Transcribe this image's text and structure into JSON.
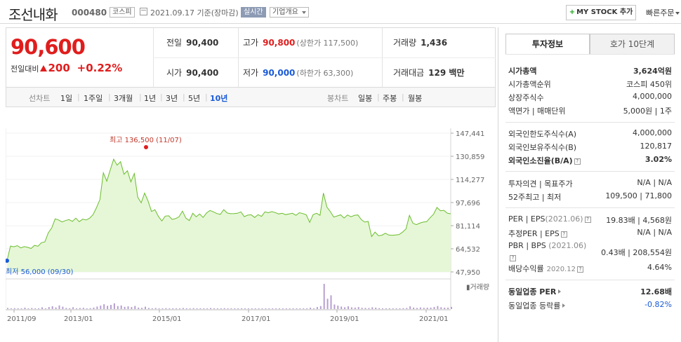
{
  "header": {
    "name": "조선내화",
    "code": "000480",
    "market": "코스피",
    "date": "2021.09.17 기준(장마감)",
    "live": "실시간",
    "overview": "기업개요",
    "mystock_label": "MY STOCK 추가",
    "quick_order": "빠른주문"
  },
  "price": {
    "current": "90,600",
    "change_label": "전일대비",
    "change": "200",
    "change_pct": "+0.22%",
    "prev_label": "전일",
    "prev": "90,400",
    "high_label": "고가",
    "high": "90,800",
    "upper_limit": "(상한가 117,500)",
    "volume_label": "거래량",
    "volume": "1,436",
    "open_label": "시가",
    "open": "90,400",
    "low_label": "저가",
    "low": "90,000",
    "lower_limit": "(하한가 63,300)",
    "amount_label": "거래대금",
    "amount": "129 백만"
  },
  "periods": {
    "line_chart_label": "선차트",
    "items": [
      "1일",
      "1주일",
      "3개월",
      "1년",
      "3년",
      "5년",
      "10년"
    ],
    "active": "10년",
    "candle_label": "봉차트",
    "candles": [
      "일봉",
      "주봉",
      "월봉"
    ]
  },
  "colors": {
    "up": "#e01d1d",
    "down": "#1a5ad7",
    "line": "#6bbd2e",
    "fill": "#e6f7d7",
    "volume": "#b79fd0"
  },
  "chart_data": {
    "type": "area",
    "y_ticks": [
      "147,441",
      "130,859",
      "114,277",
      "97,696",
      "81,114",
      "64,532",
      "47,950"
    ],
    "ylim": [
      47950,
      147441
    ],
    "x_ticks": [
      "2011/09",
      "2013/01",
      "2015/01",
      "2017/01",
      "2019/01",
      "2021/01"
    ],
    "high_label": "최고 136,500 (11/07)",
    "low_label": "최저 56,000 (09/30)",
    "volume_legend": "거래량",
    "series": [
      {
        "values": [
          56000,
          66500,
          66000,
          66800,
          65200,
          66100,
          65600,
          64800,
          67000,
          66400,
          68900,
          69500,
          76000,
          79500,
          86000,
          85200,
          83800,
          84800,
          85500,
          84200,
          86500,
          84000,
          85800,
          85200,
          86500,
          89000,
          94000,
          99800,
          119000,
          113000,
          121000,
          128800,
          124500,
          127000,
          118000,
          120500,
          112500,
          118500,
          101500,
          97500,
          104500,
          98800,
          91300,
          92500,
          87800,
          84500,
          88000,
          88200,
          85600,
          86200,
          87500,
          91500,
          86500,
          84800,
          90000,
          87500,
          89500,
          87000,
          90200,
          92000,
          91000,
          89800,
          89200,
          92600,
          90200,
          89700,
          89800,
          90000,
          91000,
          87600,
          88700,
          88900,
          87000,
          89000,
          87800,
          91000,
          90400,
          91200,
          90500,
          89500,
          90000,
          89000,
          89500,
          90000,
          88500,
          90400,
          89800,
          88900,
          83500,
          89000,
          90000,
          88500,
          104500,
          94500,
          91200,
          87300,
          88100,
          88900,
          86600,
          88800,
          87500,
          88500,
          88800,
          85500,
          83700,
          84200,
          73300,
          76500,
          73900,
          74300,
          75700,
          74400,
          74200,
          74500,
          74800,
          76500,
          78800,
          88500,
          82900,
          81800,
          82900,
          83700,
          84000,
          86800,
          89300,
          94200,
          91800,
          92100,
          90100,
          89600
        ]
      }
    ],
    "volume": [
      1,
      0.5,
      0.8,
      0.3,
      0.6,
      1.2,
      0.4,
      0.9,
      0.5,
      0.7,
      1.5,
      0.6,
      1.8,
      2.5,
      1.4,
      3.2,
      2.1,
      1,
      0.8,
      1.6,
      0.7,
      0.9,
      1.1,
      0.5,
      0.8,
      1.3,
      2.2,
      3,
      4.2,
      2.8,
      3.6,
      5,
      2.6,
      3.1,
      1.9,
      2.4,
      1.8,
      2.7,
      1.3,
      1.1,
      2.1,
      1,
      0.7,
      0.9,
      0.6,
      0.5,
      0.8,
      0.6,
      0.7,
      0.5,
      0.6,
      0.9,
      0.5,
      0.4,
      0.8,
      0.5,
      0.7,
      0.5,
      0.6,
      0.9,
      0.6,
      0.5,
      0.4,
      0.8,
      0.5,
      0.5,
      0.4,
      0.6,
      0.7,
      0.5,
      0.5,
      0.6,
      0.4,
      0.5,
      0.4,
      0.6,
      0.5,
      0.6,
      0.5,
      0.4,
      0.5,
      0.4,
      0.5,
      0.6,
      0.4,
      0.5,
      0.5,
      0.4,
      1.2,
      0.6,
      1.8,
      2.6,
      22,
      9,
      12,
      4,
      3,
      2.2,
      1.6,
      2.4,
      1.5,
      1.3,
      1.8,
      1.1,
      1,
      0.9,
      1.6,
      1.2,
      0.8,
      0.7,
      0.6,
      0.7,
      0.6,
      0.5,
      0.7,
      0.8,
      0.9,
      2.4,
      1.3,
      1,
      1.4,
      1.1,
      1.2,
      1.3,
      1.8,
      2.6,
      1.6,
      1.2,
      1.3,
      1.9
    ]
  },
  "right": {
    "tab_active": "투자정보",
    "tab_other": "호가 10단계",
    "rows": {
      "mktcap_k": "시가총액",
      "mktcap_v": "3,624억원",
      "rank_k": "시가총액순위",
      "rank_v": "코스피 450위",
      "shares_k": "상장주식수",
      "shares_v": "4,000,000",
      "par_k": "액면가 | 매매단위",
      "par_v": "5,000원 | 1주",
      "flimit_k": "외국인한도주식수(A)",
      "flimit_v": "4,000,000",
      "fhold_k": "외국인보유주식수(B)",
      "fhold_v": "120,817",
      "fratio_k": "외국인소진율(B/A)",
      "fratio_v": "3.02%",
      "opinion_k": "투자의견 | 목표주가",
      "opinion_v": "N/A | N/A",
      "w52_k": "52주최고 | 최저",
      "w52_v": "109,500 | 71,800",
      "per_k": "PER | EPS",
      "per_date": "(2021.06)",
      "per_v": "19.83배 | 4,568원",
      "eper_k": "추정PER | EPS",
      "eper_v": "N/A | N/A",
      "pbr_k": "PBR | BPS",
      "pbr_date": "(2021.06)",
      "pbr_v": "0.43배 | 208,554원",
      "div_k": "배당수익률",
      "div_date": "2020.12",
      "div_v": "4.64%",
      "sper_k": "동일업종 PER",
      "sper_v": "12.68배",
      "srate_k": "동일업종 등락률",
      "srate_v": "-0.82%"
    }
  }
}
